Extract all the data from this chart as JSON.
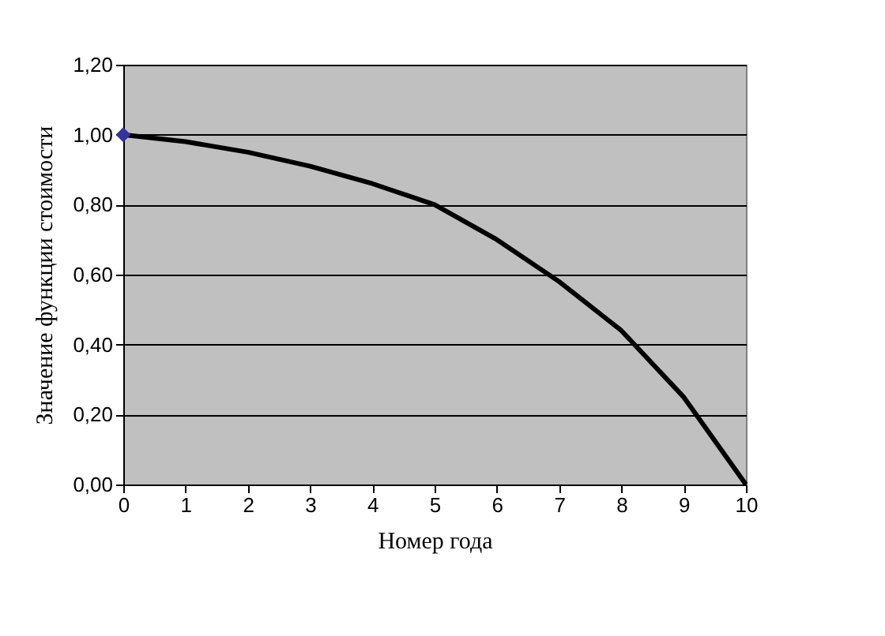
{
  "chart_data": {
    "type": "line",
    "xlabel": "Номер года",
    "ylabel": "Значение функции стоимости",
    "x": [
      0,
      1,
      2,
      3,
      4,
      5,
      6,
      7,
      8,
      9,
      10
    ],
    "xlim": [
      0,
      10
    ],
    "xticks": [
      0,
      1,
      2,
      3,
      4,
      5,
      6,
      7,
      8,
      9,
      10
    ],
    "ylim": [
      0,
      1.2
    ],
    "yticks": [
      {
        "value": 0,
        "label": "0,00"
      },
      {
        "value": 0.2,
        "label": "0,20"
      },
      {
        "value": 0.4,
        "label": "0,40"
      },
      {
        "value": 0.6,
        "label": "0,60"
      },
      {
        "value": 0.8,
        "label": "0,80"
      },
      {
        "value": 1.0,
        "label": "1,00"
      },
      {
        "value": 1.2,
        "label": "1,20"
      }
    ],
    "grid": "y",
    "line_style": "solid",
    "series": [
      {
        "color": "#000000",
        "values": [
          1.0,
          0.98,
          0.95,
          0.91,
          0.86,
          0.8,
          0.7,
          0.58,
          0.44,
          0.25,
          0.0
        ]
      },
      {
        "type": "scatter",
        "x": [
          0
        ],
        "values": [
          1.0
        ],
        "color": "#333399",
        "marker": "diamond"
      }
    ]
  }
}
